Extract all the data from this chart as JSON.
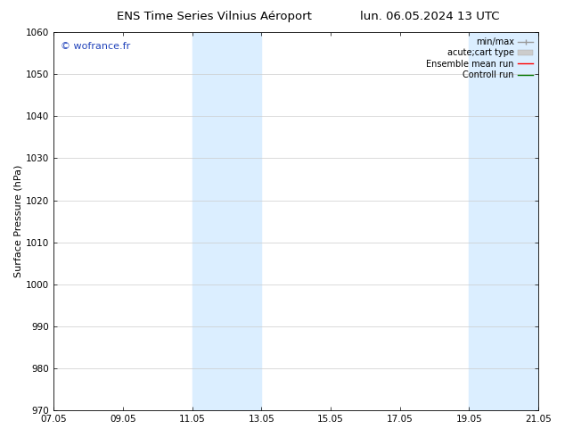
{
  "title_left": "ENS Time Series Vilnius Aéroport",
  "title_right": "lun. 06.05.2024 13 UTC",
  "ylabel": "Surface Pressure (hPa)",
  "ylim": [
    970,
    1060
  ],
  "yticks": [
    970,
    980,
    990,
    1000,
    1010,
    1020,
    1030,
    1040,
    1050,
    1060
  ],
  "xtick_labels": [
    "07.05",
    "09.05",
    "11.05",
    "13.05",
    "15.05",
    "17.05",
    "19.05",
    "21.05"
  ],
  "xtick_positions": [
    0,
    2,
    4,
    6,
    8,
    10,
    12,
    14
  ],
  "xlim": [
    0,
    14
  ],
  "shaded_regions": [
    {
      "xmin": 4.0,
      "xmax": 6.0,
      "color": "#dbeeff"
    },
    {
      "xmin": 12.0,
      "xmax": 14.0,
      "color": "#dbeeff"
    }
  ],
  "watermark": "© wofrance.fr",
  "watermark_color": "#2244bb",
  "background_color": "#ffffff",
  "grid_color": "#cccccc",
  "legend_items": [
    {
      "label": "min/max",
      "color": "#999999",
      "lw": 1.0
    },
    {
      "label": "acute;cart type",
      "color": "#cccccc",
      "lw": 4
    },
    {
      "label": "Ensemble mean run",
      "color": "#ff0000",
      "lw": 1.0
    },
    {
      "label": "Controll run",
      "color": "#007700",
      "lw": 1.0
    }
  ],
  "title_fontsize": 9.5,
  "tick_fontsize": 7.5,
  "ylabel_fontsize": 8,
  "watermark_fontsize": 8,
  "legend_fontsize": 7
}
